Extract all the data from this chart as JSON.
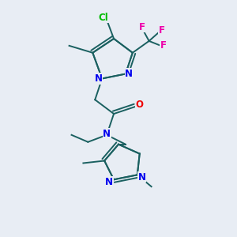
{
  "bg_color": "#e8edf4",
  "atom_colors": {
    "N": "#0000ee",
    "O": "#ee0000",
    "Cl": "#00bb00",
    "F": "#ee00aa",
    "C": "#1a6060"
  },
  "bond_color": "#1a6060",
  "bond_width": 1.4,
  "figsize": [
    3.0,
    3.0
  ],
  "dpi": 100,
  "font_size_atom": 8.5,
  "font_size_label": 7.5
}
